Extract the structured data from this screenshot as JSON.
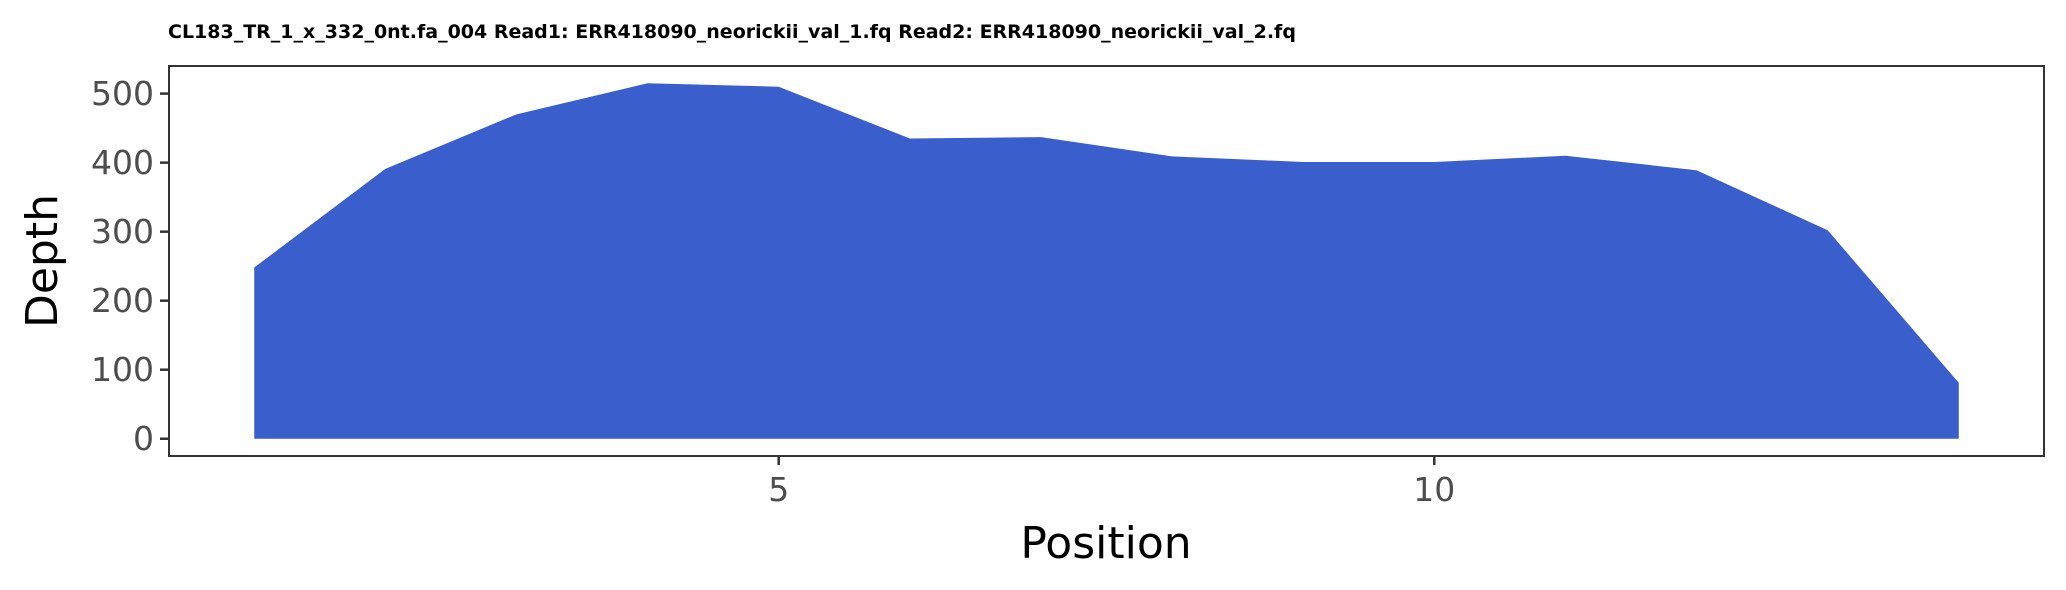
{
  "chart_data": {
    "type": "area",
    "title": "CL183_TR_1_x_332_0nt.fa_004 Read1: ERR418090_neorickii_val_1.fq Read2: ERR418090_neorickii_val_2.fq",
    "xlabel": "Position",
    "ylabel": "Depth",
    "x": [
      1,
      2,
      3,
      4,
      5,
      6,
      7,
      8,
      9,
      10,
      11,
      12,
      13,
      14
    ],
    "series": [
      {
        "values": [
          248,
          391,
          470,
          515,
          510,
          435,
          437,
          409,
          401,
          401,
          410,
          389,
          302,
          81
        ],
        "color": "#3a5fcd"
      }
    ],
    "xlim": [
      0.35,
      14.65
    ],
    "ylim": [
      -25,
      540
    ],
    "xticks": [
      5,
      10
    ],
    "yticks": [
      0,
      100,
      200,
      300,
      400,
      500
    ],
    "grid": false,
    "legend": "none"
  }
}
